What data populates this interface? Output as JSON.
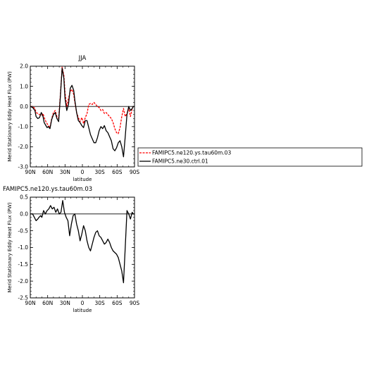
{
  "chart_data": [
    {
      "type": "line",
      "title": "JJA",
      "xlabel": "latitude",
      "ylabel": "Merid Stationary Eddy Heat Flux (PW)",
      "xlim": [
        90,
        -90
      ],
      "ylim": [
        -3.0,
        2.0
      ],
      "x_ticks": [
        {
          "v": 90,
          "label": "90N"
        },
        {
          "v": 60,
          "label": "60N"
        },
        {
          "v": 30,
          "label": "30N"
        },
        {
          "v": 0,
          "label": "0"
        },
        {
          "v": -30,
          "label": "30S"
        },
        {
          "v": -60,
          "label": "60S"
        },
        {
          "v": -90,
          "label": "90S"
        }
      ],
      "y_ticks": [
        {
          "v": 2.0,
          "label": "2.0"
        },
        {
          "v": 1.0,
          "label": "1.0"
        },
        {
          "v": 0.0,
          "label": "0.0"
        },
        {
          "v": -1.0,
          "label": "-1.0"
        },
        {
          "v": -2.0,
          "label": "-2.0"
        },
        {
          "v": -3.0,
          "label": "-3.0"
        }
      ],
      "zero_line": true,
      "legend": "right",
      "series": [
        {
          "name": "FAMIPC5.ne120.ys.tau60m.03",
          "color": "#ff0000",
          "dash": "dashed",
          "x": [
            90,
            86,
            82,
            80,
            77,
            74,
            71,
            68,
            66,
            63,
            61,
            59,
            56,
            53,
            50,
            47,
            44,
            41,
            38,
            35,
            32,
            30,
            27,
            24,
            21,
            18,
            15,
            13,
            10,
            7,
            4,
            1,
            -2,
            -5,
            -8,
            -11,
            -14,
            -17,
            -20,
            -23,
            -26,
            -29,
            -32,
            -35,
            -38,
            -41,
            -44,
            -47,
            -50,
            -53,
            -56,
            -59,
            -62,
            -65,
            -68,
            -71,
            -74,
            -77,
            -80,
            -83,
            -86,
            -88,
            -90
          ],
          "values": [
            0.0,
            0.0,
            -0.1,
            -0.3,
            -0.35,
            -0.4,
            -0.45,
            -0.35,
            -0.55,
            -0.75,
            -0.85,
            -0.95,
            -1.05,
            -0.6,
            -0.3,
            -0.2,
            -0.5,
            -0.6,
            0.6,
            1.95,
            1.55,
            0.7,
            0.0,
            0.4,
            0.75,
            0.85,
            0.6,
            0.2,
            -0.3,
            -0.55,
            -0.75,
            -0.55,
            -0.85,
            -0.55,
            -0.35,
            0.1,
            0.15,
            0.1,
            0.2,
            0.1,
            0.0,
            -0.05,
            -0.2,
            -0.15,
            -0.35,
            -0.3,
            -0.4,
            -0.5,
            -0.6,
            -0.8,
            -1.1,
            -1.3,
            -1.35,
            -1.05,
            -0.5,
            -0.1,
            -0.5,
            -0.35,
            -0.1,
            -0.5,
            -0.1,
            0.0,
            0.0
          ]
        },
        {
          "name": "FAMIPC5.ne30.ctrl.01",
          "color": "#000000",
          "dash": "solid",
          "x": [
            90,
            86,
            82,
            80,
            77,
            74,
            71,
            68,
            66,
            63,
            61,
            59,
            56,
            53,
            50,
            47,
            44,
            41,
            38,
            35,
            32,
            30,
            27,
            24,
            21,
            18,
            15,
            13,
            10,
            7,
            4,
            1,
            -2,
            -5,
            -8,
            -11,
            -14,
            -17,
            -20,
            -23,
            -26,
            -29,
            -32,
            -35,
            -38,
            -41,
            -44,
            -47,
            -50,
            -53,
            -56,
            -59,
            -62,
            -65,
            -68,
            -71,
            -74,
            -77,
            -80,
            -83,
            -86,
            -88,
            -90
          ],
          "values": [
            0.0,
            -0.05,
            -0.2,
            -0.5,
            -0.6,
            -0.55,
            -0.3,
            -0.5,
            -0.8,
            -0.95,
            -1.05,
            -1.0,
            -1.1,
            -0.65,
            -0.4,
            -0.3,
            -0.6,
            -0.75,
            0.5,
            1.9,
            1.4,
            0.4,
            -0.2,
            0.1,
            0.9,
            1.05,
            0.8,
            0.3,
            -0.3,
            -0.7,
            -0.8,
            -0.95,
            -1.05,
            -0.7,
            -0.7,
            -1.05,
            -1.4,
            -1.6,
            -1.8,
            -1.8,
            -1.55,
            -1.2,
            -1.0,
            -1.1,
            -0.95,
            -1.2,
            -1.3,
            -1.5,
            -1.7,
            -2.1,
            -2.2,
            -2.05,
            -1.8,
            -1.7,
            -2.0,
            -2.5,
            -1.5,
            -0.4,
            0.0,
            -0.2,
            -0.1,
            0.0,
            0.0
          ]
        }
      ]
    },
    {
      "type": "line",
      "title": "FAMIPC5.ne120.ys.tau60m.03",
      "xlabel": "latitude",
      "ylabel": "Merid Stationary Eddy Heat Flux (PW)",
      "xlim": [
        90,
        -90
      ],
      "ylim": [
        -2.5,
        0.5
      ],
      "x_ticks": [
        {
          "v": 90,
          "label": "90N"
        },
        {
          "v": 60,
          "label": "60N"
        },
        {
          "v": 30,
          "label": "30N"
        },
        {
          "v": 0,
          "label": "0"
        },
        {
          "v": -30,
          "label": "30S"
        },
        {
          "v": -60,
          "label": "60S"
        },
        {
          "v": -90,
          "label": "90S"
        }
      ],
      "y_ticks": [
        {
          "v": 0.5,
          "label": "0.5"
        },
        {
          "v": 0.0,
          "label": "0.0"
        },
        {
          "v": -0.5,
          "label": "-0.5"
        },
        {
          "v": -1.0,
          "label": "-1.0"
        },
        {
          "v": -1.5,
          "label": "-1.5"
        },
        {
          "v": -2.0,
          "label": "-2.0"
        },
        {
          "v": -2.5,
          "label": "-2.5"
        }
      ],
      "zero_line": true,
      "series": [
        {
          "color": "#000000",
          "dash": "solid",
          "x": [
            90,
            86,
            83,
            80,
            77,
            75,
            72,
            70,
            67,
            64,
            61,
            58,
            55,
            52,
            49,
            46,
            43,
            40,
            37,
            34,
            31,
            28,
            25,
            22,
            19,
            16,
            13,
            10,
            7,
            4,
            1,
            -2,
            -5,
            -8,
            -11,
            -14,
            -17,
            -20,
            -23,
            -26,
            -29,
            -32,
            -35,
            -38,
            -41,
            -44,
            -47,
            -50,
            -53,
            -56,
            -59,
            -62,
            -65,
            -68,
            -71,
            -74,
            -77,
            -80,
            -83,
            -86,
            -88,
            -90
          ],
          "values": [
            0.0,
            0.0,
            -0.1,
            -0.2,
            -0.15,
            -0.1,
            -0.05,
            -0.1,
            0.1,
            0.0,
            0.1,
            0.15,
            0.25,
            0.15,
            0.2,
            0.05,
            0.15,
            0.0,
            0.05,
            0.4,
            0.05,
            -0.1,
            -0.2,
            -0.65,
            -0.3,
            -0.05,
            0.0,
            -0.3,
            -0.5,
            -0.8,
            -0.6,
            -0.35,
            -0.5,
            -0.8,
            -1.0,
            -1.1,
            -0.9,
            -0.7,
            -0.55,
            -0.5,
            -0.65,
            -0.7,
            -0.8,
            -0.9,
            -0.85,
            -0.75,
            -0.85,
            -1.0,
            -1.1,
            -1.15,
            -1.2,
            -1.3,
            -1.5,
            -1.7,
            -2.05,
            -1.0,
            0.1,
            0.0,
            -0.15,
            0.05,
            0.0,
            0.0
          ]
        }
      ]
    }
  ]
}
